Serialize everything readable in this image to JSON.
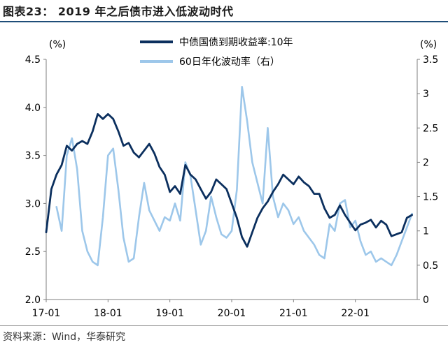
{
  "title": "图表23： 2019 年之后债市进入低波动时代",
  "source": "资料来源：Wind，华泰研究",
  "chart_data": {
    "type": "line",
    "x_tick_labels": [
      "17-01",
      "18-01",
      "19-01",
      "20-01",
      "21-01",
      "22-01"
    ],
    "x_range": [
      "2017-01",
      "2022-12"
    ],
    "y_left": {
      "unit_label": "(%)",
      "range": [
        2.0,
        4.5
      ],
      "ticks": [
        "2.0",
        "2.5",
        "3.0",
        "3.5",
        "4.0",
        "4.5"
      ]
    },
    "y_right": {
      "unit_label": "(%)",
      "range": [
        0,
        3.5
      ],
      "ticks": [
        "0",
        "0.5",
        "1",
        "1.5",
        "2",
        "2.5",
        "3",
        "3.5"
      ]
    },
    "grid": false,
    "legend_position": "top-center",
    "series": [
      {
        "name": "中债国债到期收益率:10年",
        "axis": "left",
        "color": "#0b2f5e",
        "points": [
          [
            "2017-01",
            2.7
          ],
          [
            "2017-02",
            3.15
          ],
          [
            "2017-03",
            3.3
          ],
          [
            "2017-04",
            3.4
          ],
          [
            "2017-05",
            3.6
          ],
          [
            "2017-06",
            3.55
          ],
          [
            "2017-07",
            3.62
          ],
          [
            "2017-08",
            3.65
          ],
          [
            "2017-09",
            3.62
          ],
          [
            "2017-10",
            3.75
          ],
          [
            "2017-11",
            3.93
          ],
          [
            "2017-12",
            3.88
          ],
          [
            "2018-01",
            3.93
          ],
          [
            "2018-02",
            3.88
          ],
          [
            "2018-03",
            3.75
          ],
          [
            "2018-04",
            3.6
          ],
          [
            "2018-05",
            3.63
          ],
          [
            "2018-06",
            3.53
          ],
          [
            "2018-07",
            3.48
          ],
          [
            "2018-08",
            3.55
          ],
          [
            "2018-09",
            3.62
          ],
          [
            "2018-10",
            3.52
          ],
          [
            "2018-11",
            3.38
          ],
          [
            "2018-12",
            3.3
          ],
          [
            "2019-01",
            3.12
          ],
          [
            "2019-02",
            3.18
          ],
          [
            "2019-03",
            3.1
          ],
          [
            "2019-04",
            3.4
          ],
          [
            "2019-05",
            3.3
          ],
          [
            "2019-06",
            3.25
          ],
          [
            "2019-07",
            3.15
          ],
          [
            "2019-08",
            3.05
          ],
          [
            "2019-09",
            3.12
          ],
          [
            "2019-10",
            3.25
          ],
          [
            "2019-11",
            3.2
          ],
          [
            "2019-12",
            3.15
          ],
          [
            "2020-01",
            3.0
          ],
          [
            "2020-02",
            2.85
          ],
          [
            "2020-03",
            2.65
          ],
          [
            "2020-04",
            2.55
          ],
          [
            "2020-05",
            2.7
          ],
          [
            "2020-06",
            2.85
          ],
          [
            "2020-07",
            2.95
          ],
          [
            "2020-08",
            3.02
          ],
          [
            "2020-09",
            3.12
          ],
          [
            "2020-10",
            3.2
          ],
          [
            "2020-11",
            3.3
          ],
          [
            "2020-12",
            3.25
          ],
          [
            "2021-01",
            3.2
          ],
          [
            "2021-02",
            3.28
          ],
          [
            "2021-03",
            3.22
          ],
          [
            "2021-04",
            3.18
          ],
          [
            "2021-05",
            3.1
          ],
          [
            "2021-06",
            3.1
          ],
          [
            "2021-07",
            2.95
          ],
          [
            "2021-08",
            2.85
          ],
          [
            "2021-09",
            2.88
          ],
          [
            "2021-10",
            2.98
          ],
          [
            "2021-11",
            2.88
          ],
          [
            "2021-12",
            2.8
          ],
          [
            "2022-01",
            2.72
          ],
          [
            "2022-02",
            2.78
          ],
          [
            "2022-03",
            2.8
          ],
          [
            "2022-04",
            2.83
          ],
          [
            "2022-05",
            2.75
          ],
          [
            "2022-06",
            2.82
          ],
          [
            "2022-07",
            2.78
          ],
          [
            "2022-08",
            2.66
          ],
          [
            "2022-09",
            2.68
          ],
          [
            "2022-10",
            2.7
          ],
          [
            "2022-11",
            2.85
          ],
          [
            "2022-12",
            2.88
          ]
        ]
      },
      {
        "name": "60日年化波动率（右）",
        "axis": "right",
        "color": "#9dc7ea",
        "points": [
          [
            "2017-03",
            1.35
          ],
          [
            "2017-04",
            1.0
          ],
          [
            "2017-05",
            2.1
          ],
          [
            "2017-06",
            2.35
          ],
          [
            "2017-07",
            1.9
          ],
          [
            "2017-08",
            1.0
          ],
          [
            "2017-09",
            0.7
          ],
          [
            "2017-10",
            0.55
          ],
          [
            "2017-11",
            0.5
          ],
          [
            "2017-12",
            1.2
          ],
          [
            "2018-01",
            2.1
          ],
          [
            "2018-02",
            2.2
          ],
          [
            "2018-03",
            1.6
          ],
          [
            "2018-04",
            0.9
          ],
          [
            "2018-05",
            0.55
          ],
          [
            "2018-06",
            0.6
          ],
          [
            "2018-07",
            1.2
          ],
          [
            "2018-08",
            1.7
          ],
          [
            "2018-09",
            1.3
          ],
          [
            "2018-10",
            1.15
          ],
          [
            "2018-11",
            1.0
          ],
          [
            "2018-12",
            1.2
          ],
          [
            "2019-01",
            1.15
          ],
          [
            "2019-02",
            1.4
          ],
          [
            "2019-03",
            1.15
          ],
          [
            "2019-04",
            2.0
          ],
          [
            "2019-05",
            1.8
          ],
          [
            "2019-06",
            1.3
          ],
          [
            "2019-07",
            0.8
          ],
          [
            "2019-08",
            1.0
          ],
          [
            "2019-09",
            1.5
          ],
          [
            "2019-10",
            1.2
          ],
          [
            "2019-11",
            0.95
          ],
          [
            "2019-12",
            0.9
          ],
          [
            "2020-01",
            1.0
          ],
          [
            "2020-02",
            1.6
          ],
          [
            "2020-03",
            3.1
          ],
          [
            "2020-04",
            2.6
          ],
          [
            "2020-05",
            2.0
          ],
          [
            "2020-06",
            1.7
          ],
          [
            "2020-07",
            1.4
          ],
          [
            "2020-08",
            2.5
          ],
          [
            "2020-09",
            1.5
          ],
          [
            "2020-10",
            1.2
          ],
          [
            "2020-11",
            1.4
          ],
          [
            "2020-12",
            1.3
          ],
          [
            "2021-01",
            1.1
          ],
          [
            "2021-02",
            1.2
          ],
          [
            "2021-03",
            1.0
          ],
          [
            "2021-04",
            0.9
          ],
          [
            "2021-05",
            0.8
          ],
          [
            "2021-06",
            0.65
          ],
          [
            "2021-07",
            0.6
          ],
          [
            "2021-08",
            1.1
          ],
          [
            "2021-09",
            1.0
          ],
          [
            "2021-10",
            1.4
          ],
          [
            "2021-11",
            1.45
          ],
          [
            "2021-12",
            1.05
          ],
          [
            "2022-01",
            1.15
          ],
          [
            "2022-02",
            0.85
          ],
          [
            "2022-03",
            0.65
          ],
          [
            "2022-04",
            0.7
          ],
          [
            "2022-05",
            0.55
          ],
          [
            "2022-06",
            0.6
          ],
          [
            "2022-07",
            0.55
          ],
          [
            "2022-08",
            0.5
          ],
          [
            "2022-09",
            0.65
          ],
          [
            "2022-10",
            0.85
          ],
          [
            "2022-11",
            1.05
          ],
          [
            "2022-12",
            1.25
          ]
        ]
      }
    ]
  }
}
